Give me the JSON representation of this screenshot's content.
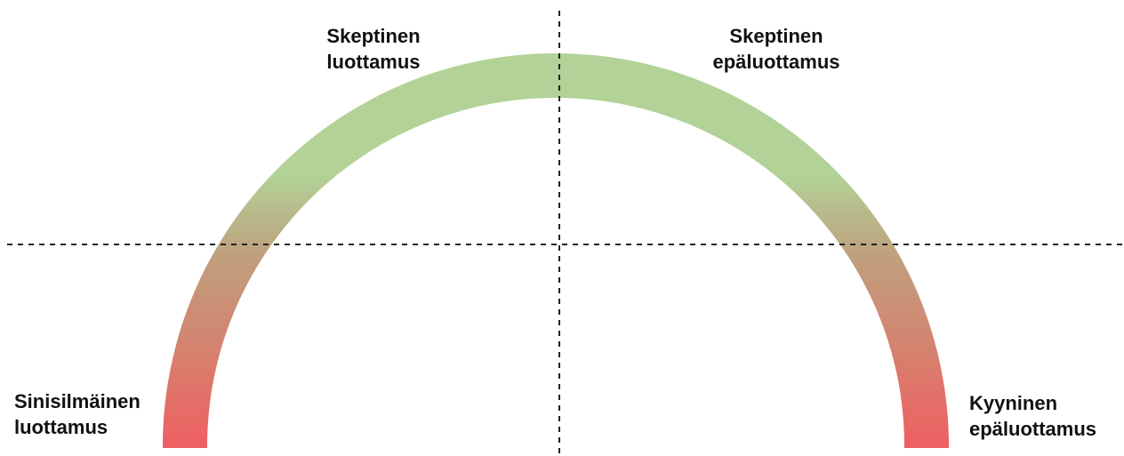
{
  "labels": {
    "top_left": {
      "line1": "Skeptinen",
      "line2": "luottamus"
    },
    "top_right": {
      "line1": "Skeptinen",
      "line2": "epäluottamus"
    },
    "bottom_left": {
      "line1": "Sinisilmäinen",
      "line2": "luottamus"
    },
    "bottom_right": {
      "line1": "Kyyninen",
      "line2": "epäluottamus"
    }
  },
  "colors": {
    "arc_top": "#b2d297",
    "arc_bottom": "#ef5f61",
    "dashed_line": "#222222"
  }
}
